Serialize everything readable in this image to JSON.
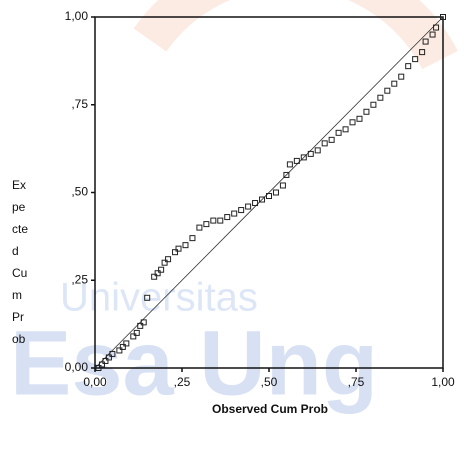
{
  "chart_data": {
    "type": "scatter",
    "xlabel": "Observed Cum Prob",
    "ylabel_lines": [
      "Ex",
      "pe",
      "cte",
      "d",
      "Cu",
      "m",
      "Pr",
      "ob"
    ],
    "watermark": [
      "Universitas",
      "Esa Ung"
    ],
    "xlim": [
      0,
      1
    ],
    "ylim": [
      0,
      1
    ],
    "xticks": [
      {
        "value": 0,
        "label": "0,00"
      },
      {
        "value": 0.25,
        "label": ",25"
      },
      {
        "value": 0.5,
        "label": ",50"
      },
      {
        "value": 0.75,
        "label": ",75"
      },
      {
        "value": 1,
        "label": "1,00"
      }
    ],
    "yticks": [
      {
        "value": 0,
        "label": "0,00"
      },
      {
        "value": 0.25,
        "label": ",25"
      },
      {
        "value": 0.5,
        "label": ",50"
      },
      {
        "value": 0.75,
        "label": ",75"
      },
      {
        "value": 1,
        "label": "1,00"
      }
    ],
    "reference_line": true,
    "color": "#222222",
    "x": [
      0.01,
      0.02,
      0.03,
      0.04,
      0.05,
      0.07,
      0.08,
      0.09,
      0.11,
      0.12,
      0.13,
      0.14,
      0.15,
      0.17,
      0.18,
      0.19,
      0.2,
      0.21,
      0.23,
      0.24,
      0.26,
      0.28,
      0.3,
      0.32,
      0.34,
      0.36,
      0.38,
      0.4,
      0.42,
      0.44,
      0.46,
      0.48,
      0.5,
      0.52,
      0.54,
      0.55,
      0.56,
      0.58,
      0.6,
      0.62,
      0.64,
      0.66,
      0.68,
      0.7,
      0.72,
      0.74,
      0.76,
      0.78,
      0.8,
      0.82,
      0.84,
      0.86,
      0.88,
      0.9,
      0.92,
      0.94,
      0.95,
      0.97,
      0.98,
      1.0
    ],
    "y": [
      0.0,
      0.01,
      0.02,
      0.03,
      0.04,
      0.05,
      0.06,
      0.07,
      0.09,
      0.1,
      0.12,
      0.13,
      0.2,
      0.26,
      0.27,
      0.28,
      0.3,
      0.31,
      0.33,
      0.34,
      0.35,
      0.37,
      0.4,
      0.41,
      0.42,
      0.42,
      0.43,
      0.44,
      0.45,
      0.46,
      0.47,
      0.48,
      0.49,
      0.5,
      0.52,
      0.55,
      0.58,
      0.59,
      0.6,
      0.61,
      0.62,
      0.64,
      0.65,
      0.67,
      0.68,
      0.7,
      0.71,
      0.73,
      0.75,
      0.77,
      0.79,
      0.81,
      0.83,
      0.86,
      0.88,
      0.9,
      0.93,
      0.95,
      0.97,
      1.0
    ]
  }
}
